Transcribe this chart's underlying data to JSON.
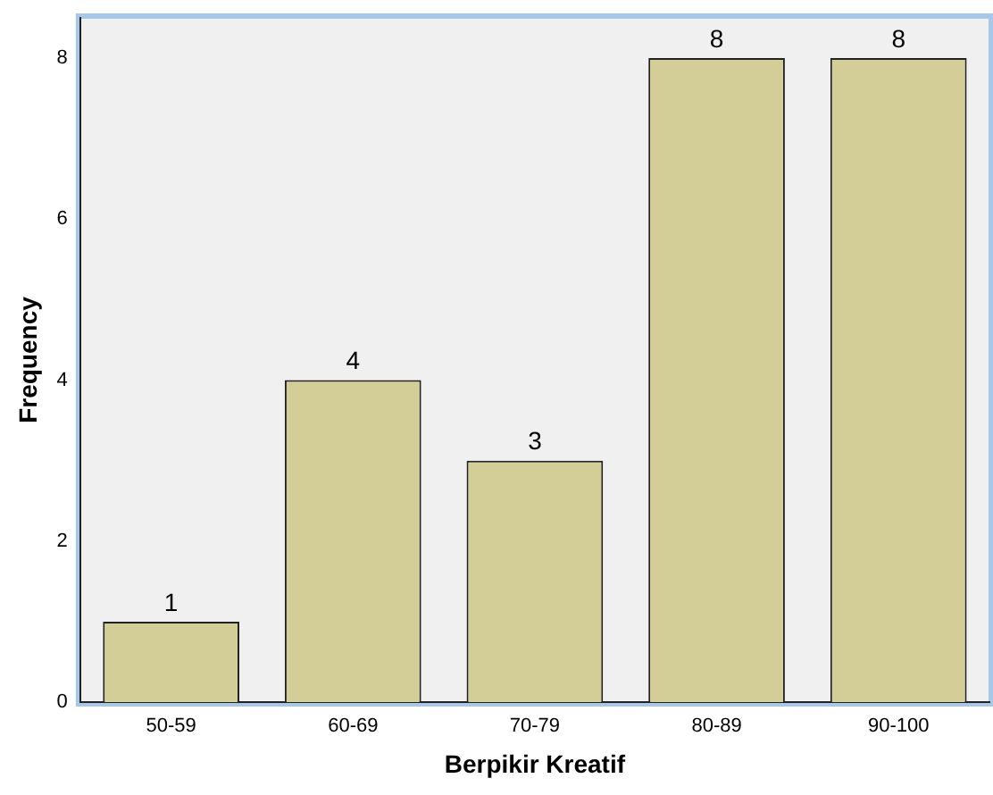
{
  "chart_data": {
    "type": "bar",
    "xlabel": "Berpikir Kreatif",
    "ylabel": "Frequency",
    "categories": [
      "50-59",
      "60-69",
      "70-79",
      "80-89",
      "90-100"
    ],
    "values": [
      1,
      4,
      3,
      8,
      8
    ],
    "color": "#d3ce97",
    "ylim": [
      0,
      8.5
    ],
    "yticks": [
      0,
      2,
      4,
      6,
      8
    ],
    "grid": false,
    "legend": false,
    "data_labels": true
  }
}
